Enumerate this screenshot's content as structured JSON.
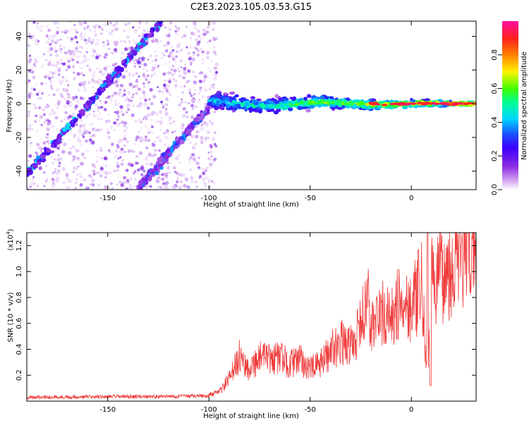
{
  "title": "C2E3.2023.105.03.53.G15",
  "chart_data": [
    {
      "type": "heatmap",
      "xlabel": "Height of straight line (km)",
      "ylabel": "Frequency (Hz)",
      "xlim": [
        -190,
        32
      ],
      "ylim": [
        -51,
        49
      ],
      "xticks": [
        -150,
        -100,
        -50,
        0
      ],
      "yticks": [
        -40,
        -20,
        0,
        20,
        40
      ],
      "colorbar": {
        "label": "Normalized spectral amplitude",
        "range": [
          0,
          1
        ],
        "ticks": [
          "0.0",
          "0.2",
          "0.4",
          "0.6",
          "0.8"
        ],
        "colors": [
          "#ffffff",
          "#cf9bf0",
          "#8a2be2",
          "#3a00ff",
          "#1a52ff",
          "#00d6ff",
          "#00ff90",
          "#44ff00",
          "#fff200",
          "#ff8000",
          "#ff2020",
          "#ff0aa0"
        ]
      },
      "features": [
        {
          "name": "diagonal band 1",
          "x": [
            -190,
            -124
          ],
          "y": [
            -42,
            48
          ],
          "amplitude": 0.2
        },
        {
          "name": "diagonal band 2",
          "x": [
            -135,
            -95
          ],
          "y": [
            -51,
            5
          ],
          "amplitude": 0.15
        },
        {
          "name": "horizontal signal",
          "x": [
            -100,
            32
          ],
          "y_start": [
            -3,
            3
          ],
          "y_end": [
            -1,
            1
          ],
          "amplitude": [
            0.4,
            0.9
          ]
        }
      ],
      "scatter_extent_km": [
        -190,
        -96
      ]
    },
    {
      "type": "line",
      "xlabel": "Height of straight line (km)",
      "ylabel": "SNR (10 * v/v)",
      "multiplier": "(x10",
      "multiplier_exp": "4",
      "xlim": [
        -190,
        32
      ],
      "ylim": [
        0,
        1.3
      ],
      "xticks": [
        -150,
        -100,
        -50,
        0
      ],
      "yticks": [
        "0.2",
        "0.4",
        "0.6",
        "0.8",
        "1.0",
        "1.2"
      ],
      "color": "#f03a3a",
      "series": [
        {
          "x": [
            -190,
            -100,
            -95,
            -90,
            -85,
            -80,
            -75,
            -70,
            -65,
            -60,
            -55,
            -50,
            -45,
            -40,
            -35,
            -30,
            -25,
            -22,
            -20,
            -15,
            -10,
            -5,
            0,
            5,
            8,
            10,
            15,
            20,
            25,
            30,
            32
          ],
          "y": [
            0.03,
            0.04,
            0.06,
            0.15,
            0.3,
            0.22,
            0.3,
            0.28,
            0.3,
            0.25,
            0.28,
            0.22,
            0.25,
            0.35,
            0.4,
            0.38,
            0.5,
            0.75,
            0.5,
            0.6,
            0.55,
            0.7,
            0.65,
            0.78,
            0.15,
            0.8,
            0.85,
            0.92,
            0.97,
            1.05,
            1.06
          ]
        }
      ]
    }
  ]
}
